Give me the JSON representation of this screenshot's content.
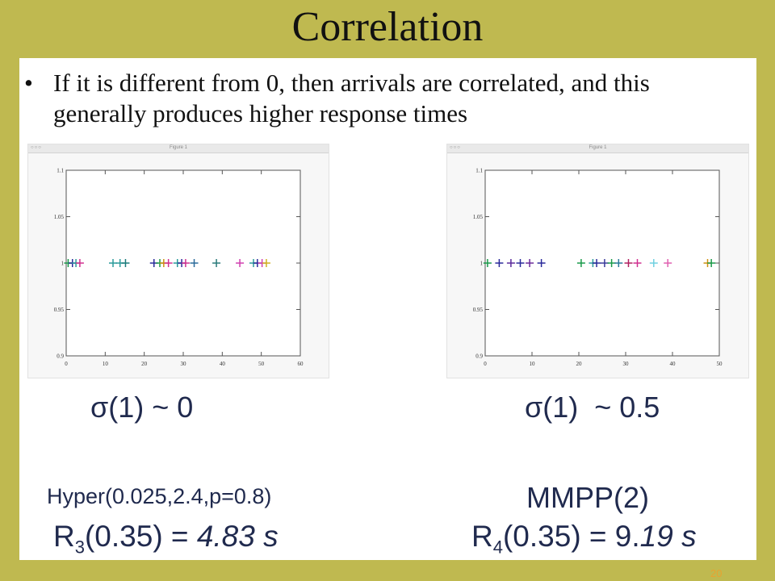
{
  "slide": {
    "title": "Correlation",
    "bullet": "If it is different from 0, then arrivals are correlated, and this generally produces higher response times",
    "page_number": "20"
  },
  "left": {
    "window_title": "Figure 1",
    "sigma": "σ(1) ~ 0",
    "model": "Hyper(0.025,2.4,p=0.8)",
    "r_prefix": "R",
    "r_sub": "3",
    "r_arg": "(0.35) = ",
    "r_value": "4.83 s"
  },
  "right": {
    "window_title": "Figure 1",
    "sigma": "σ(1)  ~ 0.5",
    "model": "MMPP(2)",
    "r_prefix": "R",
    "r_sub": "4",
    "r_arg": "(0.35) = 9.",
    "r_value": "19 s"
  },
  "chart_data": [
    {
      "type": "scatter",
      "xlim": [
        0,
        60
      ],
      "ylim": [
        0.9,
        1.1
      ],
      "x_ticks": [
        0,
        10,
        20,
        30,
        40,
        50,
        60
      ],
      "y_ticks": [
        0.9,
        0.95,
        1,
        1.05,
        1.1
      ],
      "y_tick_labels": [
        "0.9",
        "0.95",
        "1",
        "1.05",
        "1.1"
      ],
      "grid": false,
      "points": [
        {
          "x": 0.5,
          "y": 1,
          "color": "#1a9a4a"
        },
        {
          "x": 1.6,
          "y": 1,
          "color": "#2a2a9a"
        },
        {
          "x": 2.5,
          "y": 1,
          "color": "#2a9a9a"
        },
        {
          "x": 3.5,
          "y": 1,
          "color": "#d03090"
        },
        {
          "x": 12.0,
          "y": 1,
          "color": "#2a9a9a"
        },
        {
          "x": 13.8,
          "y": 1,
          "color": "#2a9a9a"
        },
        {
          "x": 15.2,
          "y": 1,
          "color": "#1a7a7a"
        },
        {
          "x": 22.5,
          "y": 1,
          "color": "#2a2a9a"
        },
        {
          "x": 24.0,
          "y": 1,
          "color": "#1a9a4a"
        },
        {
          "x": 25.0,
          "y": 1,
          "color": "#d09010"
        },
        {
          "x": 26.2,
          "y": 1,
          "color": "#d03090"
        },
        {
          "x": 28.5,
          "y": 1,
          "color": "#2a9a9a"
        },
        {
          "x": 29.6,
          "y": 1,
          "color": "#2a2a9a"
        },
        {
          "x": 30.6,
          "y": 1,
          "color": "#d03090"
        },
        {
          "x": 32.8,
          "y": 1,
          "color": "#2a6a9a"
        },
        {
          "x": 38.5,
          "y": 1,
          "color": "#2a7a7a"
        },
        {
          "x": 44.5,
          "y": 1,
          "color": "#d040b0"
        },
        {
          "x": 48.0,
          "y": 1,
          "color": "#2a9a9a"
        },
        {
          "x": 49.0,
          "y": 1,
          "color": "#2a2a9a"
        },
        {
          "x": 50.2,
          "y": 1,
          "color": "#d040b0"
        },
        {
          "x": 51.3,
          "y": 1,
          "color": "#d0b020"
        }
      ]
    },
    {
      "type": "scatter",
      "xlim": [
        0,
        50
      ],
      "ylim": [
        0.9,
        1.1
      ],
      "x_ticks": [
        0,
        10,
        20,
        30,
        40,
        50
      ],
      "y_ticks": [
        0.9,
        0.95,
        1,
        1.05,
        1.1
      ],
      "y_tick_labels": [
        "0.9",
        "0.95",
        "1",
        "1.05",
        "1.1"
      ],
      "grid": false,
      "points": [
        {
          "x": 0.5,
          "y": 1,
          "color": "#1a9a4a"
        },
        {
          "x": 3.0,
          "y": 1,
          "color": "#2a2a9a"
        },
        {
          "x": 5.5,
          "y": 1,
          "color": "#5a2a9a"
        },
        {
          "x": 7.5,
          "y": 1,
          "color": "#2a2a9a"
        },
        {
          "x": 9.5,
          "y": 1,
          "color": "#6a2a9a"
        },
        {
          "x": 12.0,
          "y": 1,
          "color": "#2a2a9a"
        },
        {
          "x": 20.5,
          "y": 1,
          "color": "#1a9a4a"
        },
        {
          "x": 23.0,
          "y": 1,
          "color": "#2a9a9a"
        },
        {
          "x": 23.8,
          "y": 1,
          "color": "#2a2a9a"
        },
        {
          "x": 25.5,
          "y": 1,
          "color": "#3a3a9a"
        },
        {
          "x": 27.0,
          "y": 1,
          "color": "#1a9a4a"
        },
        {
          "x": 28.5,
          "y": 1,
          "color": "#2a7a9a"
        },
        {
          "x": 30.6,
          "y": 1,
          "color": "#b02060"
        },
        {
          "x": 32.5,
          "y": 1,
          "color": "#d03090"
        },
        {
          "x": 36.0,
          "y": 1,
          "color": "#70d0e0"
        },
        {
          "x": 39.0,
          "y": 1,
          "color": "#e060b0"
        },
        {
          "x": 47.5,
          "y": 1,
          "color": "#d09010"
        },
        {
          "x": 48.3,
          "y": 1,
          "color": "#1a9a4a"
        }
      ]
    }
  ]
}
